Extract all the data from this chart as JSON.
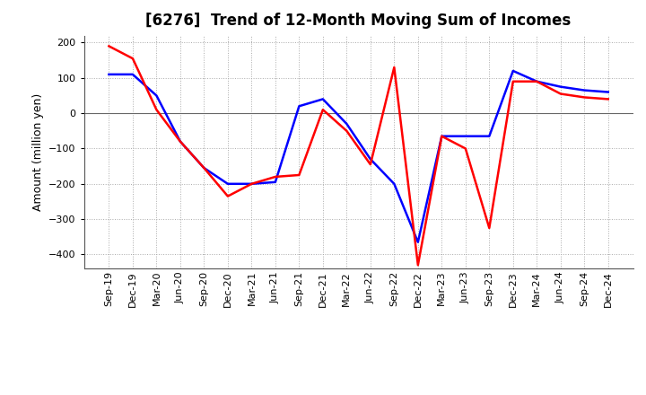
{
  "title": "[6276]  Trend of 12-Month Moving Sum of Incomes",
  "ylabel": "Amount (million yen)",
  "xlabels": [
    "Sep-19",
    "Dec-19",
    "Mar-20",
    "Jun-20",
    "Sep-20",
    "Dec-20",
    "Mar-21",
    "Jun-21",
    "Sep-21",
    "Dec-21",
    "Mar-22",
    "Jun-22",
    "Sep-22",
    "Dec-22",
    "Mar-23",
    "Jun-23",
    "Sep-23",
    "Dec-23",
    "Mar-24",
    "Jun-24",
    "Sep-24",
    "Dec-24"
  ],
  "ordinary_income": [
    110,
    110,
    50,
    -80,
    -155,
    -200,
    -200,
    -195,
    20,
    40,
    -30,
    -130,
    -200,
    -365,
    -65,
    -65,
    -65,
    120,
    90,
    75,
    65,
    60
  ],
  "net_income": [
    190,
    155,
    10,
    -80,
    -155,
    -235,
    -200,
    -180,
    -175,
    10,
    -50,
    -145,
    130,
    -430,
    -65,
    -100,
    -325,
    90,
    90,
    55,
    45,
    40
  ],
  "ordinary_color": "#0000ff",
  "net_color": "#ff0000",
  "ylim": [
    -440,
    220
  ],
  "yticks": [
    -400,
    -300,
    -200,
    -100,
    0,
    100,
    200
  ],
  "bg_color": "#ffffff",
  "plot_bg_color": "#ffffff",
  "grid_color": "#aaaaaa",
  "title_fontsize": 12,
  "axis_fontsize": 9,
  "tick_fontsize": 8,
  "legend_fontsize": 9,
  "linewidth": 1.8
}
